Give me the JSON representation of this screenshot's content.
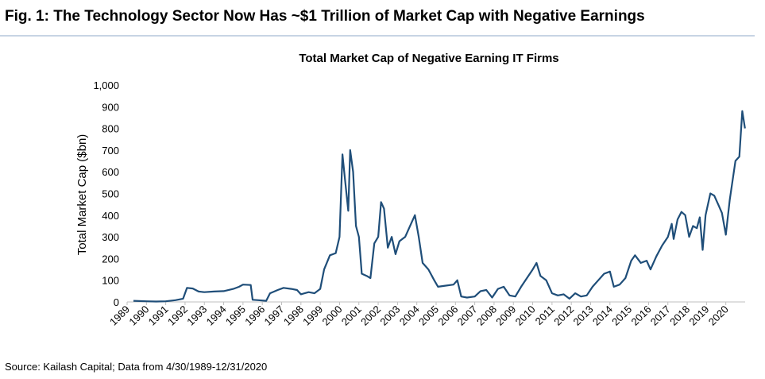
{
  "header": {
    "title": "Fig. 1: The Technology Sector Now Has ~$1 Trillion of Market Cap with Negative Earnings"
  },
  "source": "Source: Kailash Capital; Data from 4/30/1989-12/31/2020",
  "chart_data": {
    "type": "line",
    "title": "Total Market Cap of Negative Earning IT Firms",
    "y_label": "Total Market Cap ($bn)",
    "x": [
      1989.33,
      1990,
      1990.5,
      1991,
      1991.5,
      1991.9,
      1992.1,
      1992.4,
      1992.7,
      1993,
      1993.5,
      1994,
      1994.5,
      1994.8,
      1995,
      1995.4,
      1995.5,
      1995.8,
      1996.2,
      1996.4,
      1996.8,
      1997.1,
      1997.5,
      1997.8,
      1998,
      1998.4,
      1998.7,
      1999,
      1999.2,
      1999.5,
      1999.8,
      2000,
      2000.15,
      2000.3,
      2000.45,
      2000.55,
      2000.7,
      2000.85,
      2001,
      2001.15,
      2001.4,
      2001.6,
      2001.8,
      2002,
      2002.15,
      2002.3,
      2002.5,
      2002.7,
      2002.9,
      2003.1,
      2003.4,
      2003.7,
      2003.9,
      2004.1,
      2004.3,
      2004.6,
      2004.9,
      2005.1,
      2005.5,
      2005.9,
      2006.1,
      2006.3,
      2006.6,
      2007,
      2007.3,
      2007.6,
      2007.9,
      2008.2,
      2008.5,
      2008.8,
      2009.1,
      2009.4,
      2009.7,
      2010,
      2010.2,
      2010.4,
      2010.7,
      2011,
      2011.3,
      2011.6,
      2011.9,
      2012.2,
      2012.5,
      2012.8,
      2013.1,
      2013.4,
      2013.7,
      2014,
      2014.2,
      2014.5,
      2014.8,
      2015.1,
      2015.3,
      2015.6,
      2015.9,
      2016.1,
      2016.4,
      2016.7,
      2017,
      2017.2,
      2017.3,
      2017.5,
      2017.7,
      2017.9,
      2018.1,
      2018.3,
      2018.5,
      2018.65,
      2018.8,
      2018.95,
      2019.2,
      2019.4,
      2019.6,
      2019.8,
      2020,
      2020.2,
      2020.5,
      2020.7,
      2020.85,
      2020.99
    ],
    "series": [
      {
        "name": "Total Market Cap",
        "color": "#1f4e79",
        "values": [
          5,
          3,
          2,
          3,
          8,
          15,
          65,
          62,
          48,
          45,
          48,
          50,
          60,
          70,
          80,
          78,
          10,
          8,
          5,
          40,
          55,
          65,
          60,
          55,
          35,
          45,
          40,
          60,
          150,
          215,
          225,
          300,
          680,
          550,
          420,
          700,
          600,
          350,
          300,
          130,
          120,
          110,
          270,
          300,
          460,
          430,
          250,
          300,
          220,
          280,
          300,
          360,
          400,
          300,
          180,
          150,
          100,
          70,
          75,
          80,
          100,
          25,
          20,
          25,
          50,
          55,
          20,
          60,
          70,
          30,
          25,
          70,
          110,
          150,
          180,
          120,
          100,
          40,
          30,
          35,
          15,
          40,
          25,
          30,
          70,
          100,
          130,
          140,
          70,
          80,
          110,
          190,
          215,
          180,
          190,
          150,
          210,
          260,
          300,
          360,
          290,
          380,
          415,
          400,
          300,
          350,
          340,
          390,
          240,
          400,
          500,
          490,
          450,
          410,
          310,
          470,
          650,
          670,
          880,
          800
        ]
      }
    ],
    "xlim": [
      1989,
      2021
    ],
    "xticks": [
      1989,
      1990,
      1991,
      1992,
      1993,
      1994,
      1995,
      1996,
      1997,
      1998,
      1999,
      2000,
      2001,
      2002,
      2003,
      2004,
      2005,
      2006,
      2007,
      2008,
      2009,
      2010,
      2011,
      2012,
      2013,
      2014,
      2015,
      2016,
      2017,
      2018,
      2019,
      2020
    ],
    "ylim": [
      0,
      1000
    ],
    "yticks": [
      0,
      100,
      200,
      300,
      400,
      500,
      600,
      700,
      800,
      900,
      {
        "value": 1000,
        "label": "1,000"
      }
    ]
  }
}
